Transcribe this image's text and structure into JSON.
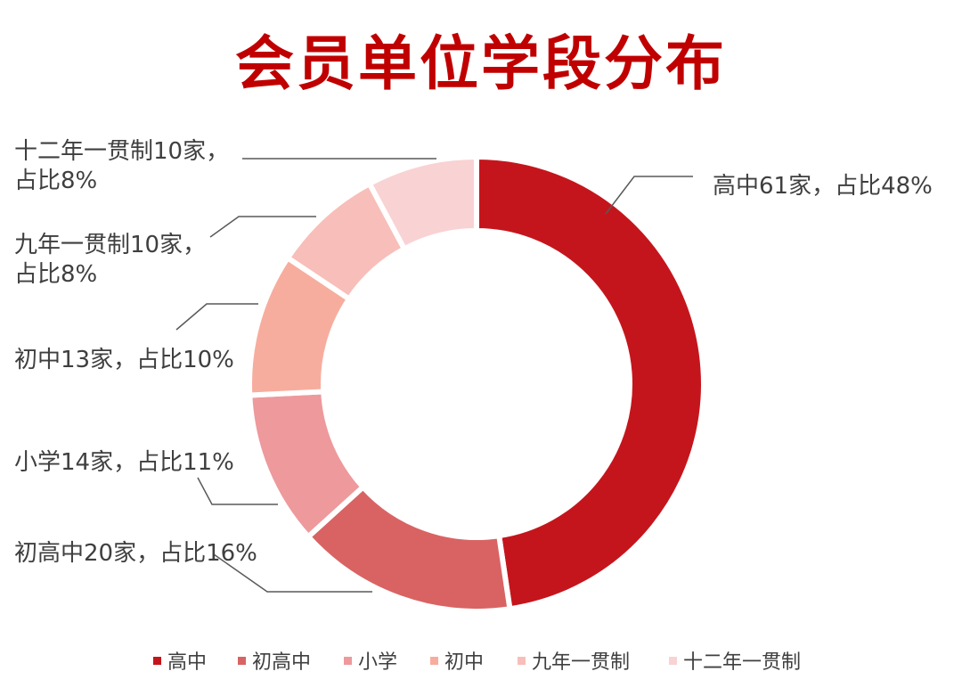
{
  "chart_data": {
    "type": "pie",
    "variant": "donut",
    "title": "会员单位学段分布",
    "legend_position": "bottom",
    "slices": [
      {
        "name": "高中",
        "count": 61,
        "percent": 48,
        "label_lines": [
          "高中61家，占比48%"
        ],
        "color": "#c5151c"
      },
      {
        "name": "初高中",
        "count": 20,
        "percent": 16,
        "label_lines": [
          "初高中20家，占比16%"
        ],
        "color": "#d96363"
      },
      {
        "name": "小学",
        "count": 14,
        "percent": 11,
        "label_lines": [
          "小学14家，占比11%"
        ],
        "color": "#ee999c"
      },
      {
        "name": "初中",
        "count": 13,
        "percent": 10,
        "label_lines": [
          "初中13家，占比10%"
        ],
        "color": "#f7ad9e"
      },
      {
        "name": "九年一贯制",
        "count": 10,
        "percent": 8,
        "label_lines": [
          "九年一贯制10家，",
          "占比8%"
        ],
        "color": "#f8beb9"
      },
      {
        "name": "十二年一贯制",
        "count": 10,
        "percent": 8,
        "label_lines": [
          "十二年一贯制10家，",
          "占比8%"
        ],
        "color": "#f9d2d3"
      }
    ]
  }
}
